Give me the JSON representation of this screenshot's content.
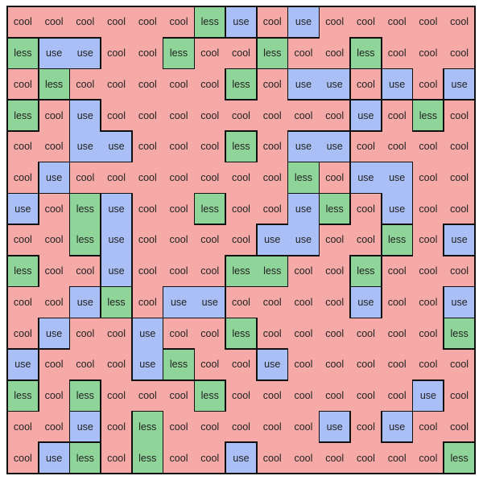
{
  "colors": {
    "cool": "#f5aaa8",
    "use": "#a9bff5",
    "less": "#8fd499",
    "border": "#111111"
  },
  "grid": [
    [
      "cool",
      "cool",
      "cool",
      "cool",
      "cool",
      "cool",
      "less",
      "use",
      "cool",
      "use",
      "cool",
      "cool",
      "cool",
      "cool",
      "cool"
    ],
    [
      "less",
      "use",
      "use",
      "cool",
      "cool",
      "less",
      "cool",
      "cool",
      "less",
      "cool",
      "cool",
      "less",
      "cool",
      "cool",
      "cool"
    ],
    [
      "cool",
      "less",
      "cool",
      "cool",
      "cool",
      "cool",
      "cool",
      "less",
      "cool",
      "use",
      "use",
      "cool",
      "use",
      "cool",
      "use"
    ],
    [
      "less",
      "cool",
      "use",
      "cool",
      "cool",
      "cool",
      "cool",
      "cool",
      "cool",
      "cool",
      "cool",
      "use",
      "cool",
      "less",
      "cool"
    ],
    [
      "cool",
      "cool",
      "use",
      "use",
      "cool",
      "cool",
      "cool",
      "less",
      "cool",
      "use",
      "use",
      "cool",
      "cool",
      "cool",
      "cool"
    ],
    [
      "cool",
      "use",
      "cool",
      "cool",
      "cool",
      "cool",
      "cool",
      "cool",
      "cool",
      "less",
      "cool",
      "use",
      "use",
      "cool",
      "cool"
    ],
    [
      "use",
      "cool",
      "less",
      "use",
      "cool",
      "cool",
      "less",
      "cool",
      "cool",
      "use",
      "less",
      "cool",
      "use",
      "cool",
      "cool"
    ],
    [
      "cool",
      "cool",
      "less",
      "use",
      "cool",
      "cool",
      "cool",
      "cool",
      "use",
      "use",
      "cool",
      "cool",
      "less",
      "cool",
      "use"
    ],
    [
      "less",
      "cool",
      "cool",
      "use",
      "cool",
      "cool",
      "cool",
      "less",
      "less",
      "cool",
      "cool",
      "less",
      "cool",
      "cool",
      "cool"
    ],
    [
      "cool",
      "cool",
      "use",
      "less",
      "cool",
      "use",
      "use",
      "cool",
      "cool",
      "cool",
      "cool",
      "use",
      "cool",
      "cool",
      "use"
    ],
    [
      "cool",
      "use",
      "cool",
      "cool",
      "use",
      "cool",
      "cool",
      "less",
      "cool",
      "cool",
      "cool",
      "cool",
      "cool",
      "cool",
      "less"
    ],
    [
      "use",
      "cool",
      "cool",
      "cool",
      "use",
      "less",
      "cool",
      "cool",
      "use",
      "cool",
      "cool",
      "cool",
      "cool",
      "cool",
      "cool"
    ],
    [
      "less",
      "cool",
      "less",
      "cool",
      "cool",
      "cool",
      "less",
      "cool",
      "cool",
      "cool",
      "cool",
      "cool",
      "cool",
      "use",
      "cool"
    ],
    [
      "cool",
      "cool",
      "use",
      "cool",
      "less",
      "cool",
      "cool",
      "cool",
      "cool",
      "cool",
      "use",
      "cool",
      "use",
      "cool",
      "cool"
    ],
    [
      "cool",
      "use",
      "less",
      "cool",
      "less",
      "cool",
      "cool",
      "use",
      "cool",
      "cool",
      "cool",
      "cool",
      "cool",
      "cool",
      "less"
    ]
  ]
}
